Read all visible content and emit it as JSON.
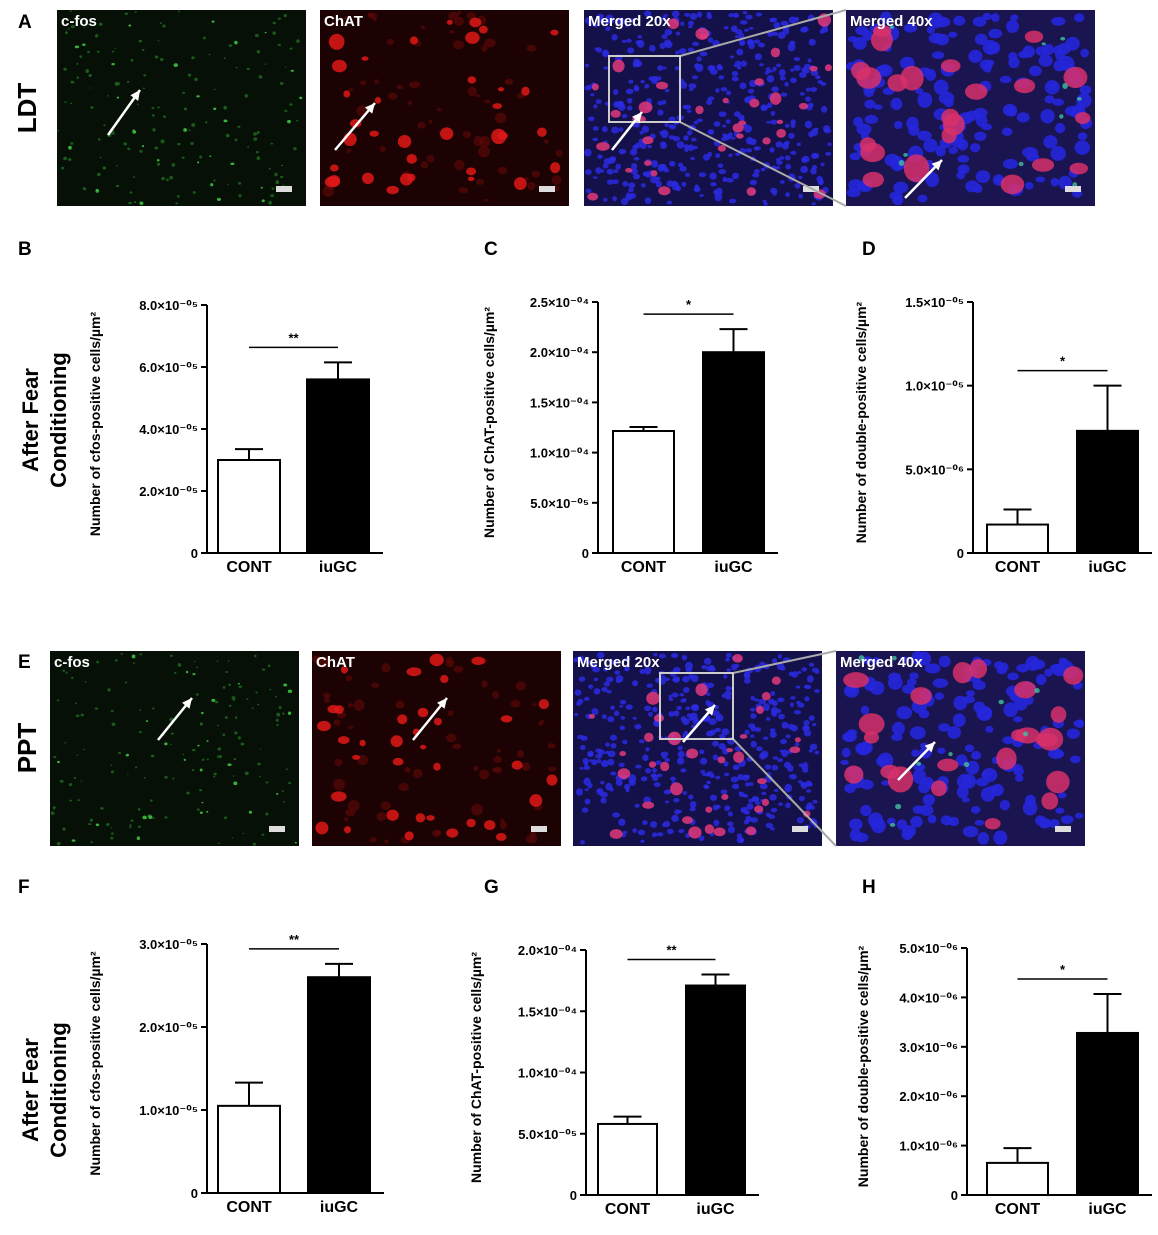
{
  "rows": [
    {
      "panel": "A",
      "label": "LDT",
      "images": [
        "c-fos",
        "ChAT",
        "Merged  20x",
        "Merged  40x"
      ]
    },
    {
      "panel": "E",
      "label": "PPT",
      "images": [
        "c-fos",
        "ChAT",
        "Merged  20x",
        "Merged  40x"
      ]
    }
  ],
  "side_labels": [
    [
      "After Fear",
      "Conditioning"
    ],
    [
      "After Fear",
      "Conditioning"
    ]
  ],
  "chart_data": [
    {
      "type": "bar",
      "panel": "B",
      "ylabel": "Number of cfos-positive cells/µm²",
      "categories": [
        "CONT",
        "iuGC"
      ],
      "values": [
        3e-05,
        5.6e-05
      ],
      "errors": [
        3.5e-06,
        5.5e-06
      ],
      "colors": [
        "#ffffff",
        "#000000"
      ],
      "significance": "**",
      "ylim": [
        0,
        8e-05
      ],
      "yticks": [
        0,
        {
          "value": 2e-05,
          "label": "2.0×10⁻⁰⁵"
        },
        {
          "value": 4e-05,
          "label": "4.0×10⁻⁰⁵"
        },
        {
          "value": 6e-05,
          "label": "6.0×10⁻⁰⁵"
        },
        {
          "value": 8e-05,
          "label": "8.0×10⁻⁰⁵"
        }
      ]
    },
    {
      "type": "bar",
      "panel": "C",
      "ylabel": "Number of ChAT-positive cells/µm²",
      "categories": [
        "CONT",
        "iuGC"
      ],
      "values": [
        0.0001215,
        0.0002
      ],
      "errors": [
        4e-06,
        2.3e-05
      ],
      "colors": [
        "#ffffff",
        "#000000"
      ],
      "significance": "*",
      "ylim": [
        0,
        0.00025
      ],
      "yticks": [
        0,
        {
          "value": 5e-05,
          "label": "5.0×10⁻⁰⁵"
        },
        {
          "value": 0.0001,
          "label": "1.0×10⁻⁰⁴"
        },
        {
          "value": 0.00015,
          "label": "1.5×10⁻⁰⁴"
        },
        {
          "value": 0.0002,
          "label": "2.0×10⁻⁰⁴"
        },
        {
          "value": 0.00025,
          "label": "2.5×10⁻⁰⁴"
        }
      ]
    },
    {
      "type": "bar",
      "panel": "D",
      "ylabel": "Number of double-positive cells/µm²",
      "categories": [
        "CONT",
        "iuGC"
      ],
      "values": [
        1.7e-06,
        7.3e-06
      ],
      "errors": [
        9e-07,
        2.7e-06
      ],
      "colors": [
        "#ffffff",
        "#000000"
      ],
      "significance": "*",
      "ylim": [
        0,
        1.5e-05
      ],
      "yticks": [
        0,
        {
          "value": 5e-06,
          "label": "5.0×10⁻⁰⁶"
        },
        {
          "value": 1e-05,
          "label": "1.0×10⁻⁰⁵"
        },
        {
          "value": 1.5e-05,
          "label": "1.5×10⁻⁰⁵"
        }
      ]
    },
    {
      "type": "bar",
      "panel": "F",
      "ylabel": "Number of cfos-positive cells/µm²",
      "categories": [
        "CONT",
        "iuGC"
      ],
      "values": [
        1.05e-05,
        2.6e-05
      ],
      "errors": [
        2.8e-06,
        1.6e-06
      ],
      "colors": [
        "#ffffff",
        "#000000"
      ],
      "significance": "**",
      "ylim": [
        0,
        3e-05
      ],
      "yticks": [
        0,
        {
          "value": 1e-05,
          "label": "1.0×10⁻⁰⁵"
        },
        {
          "value": 2e-05,
          "label": "2.0×10⁻⁰⁵"
        },
        {
          "value": 3e-05,
          "label": "3.0×10⁻⁰⁵"
        }
      ]
    },
    {
      "type": "bar",
      "panel": "G",
      "ylabel": "Number of ChAT-positive cells/µm²",
      "categories": [
        "CONT",
        "iuGC"
      ],
      "values": [
        5.8e-05,
        0.000171
      ],
      "errors": [
        6e-06,
        9e-06
      ],
      "colors": [
        "#ffffff",
        "#000000"
      ],
      "significance": "**",
      "ylim": [
        0,
        0.0002
      ],
      "yticks": [
        0,
        {
          "value": 5e-05,
          "label": "5.0×10⁻⁰⁵"
        },
        {
          "value": 0.0001,
          "label": "1.0×10⁻⁰⁴"
        },
        {
          "value": 0.00015,
          "label": "1.5×10⁻⁰⁴"
        },
        {
          "value": 0.0002,
          "label": "2.0×10⁻⁰⁴"
        }
      ]
    },
    {
      "type": "bar",
      "panel": "H",
      "ylabel": "Number of double-positive cells/µm²",
      "categories": [
        "CONT",
        "iuGC"
      ],
      "values": [
        6.5e-07,
        3.28e-06
      ],
      "errors": [
        3e-07,
        7.9e-07
      ],
      "colors": [
        "#ffffff",
        "#000000"
      ],
      "significance": "*",
      "ylim": [
        0,
        5e-06
      ],
      "yticks": [
        0,
        {
          "value": 1e-06,
          "label": "1.0×10⁻⁰⁶"
        },
        {
          "value": 2e-06,
          "label": "2.0×10⁻⁰⁶"
        },
        {
          "value": 3e-06,
          "label": "3.0×10⁻⁰⁶"
        },
        {
          "value": 4e-06,
          "label": "4.0×10⁻⁰⁶"
        },
        {
          "value": 5e-06,
          "label": "5.0×10⁻⁰⁶"
        }
      ]
    }
  ]
}
